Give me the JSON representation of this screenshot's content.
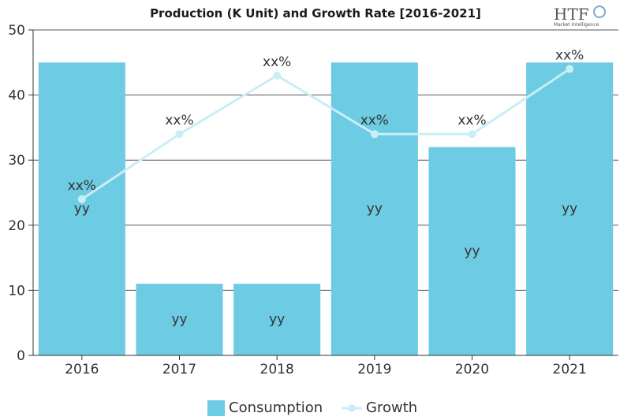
{
  "chart_data": {
    "type": "bar",
    "title": "Production (K Unit) and Growth Rate [2016-2021]",
    "categories": [
      "2016",
      "2017",
      "2018",
      "2019",
      "2020",
      "2021"
    ],
    "ylim": [
      0,
      50
    ],
    "yticks": [
      "0",
      "10",
      "20",
      "30",
      "40",
      "50"
    ],
    "grid": true,
    "legend_position": "bottom",
    "series": [
      {
        "name": "Consumption",
        "type": "bar",
        "color": "#6dcbe3",
        "values": [
          45,
          11,
          11,
          45,
          32,
          45
        ],
        "labels": [
          "yy",
          "yy",
          "yy",
          "yy",
          "yy",
          "yy"
        ]
      },
      {
        "name": "Growth",
        "type": "line",
        "color": "#c9eef6",
        "values": [
          24,
          34,
          43,
          34,
          34,
          44
        ],
        "labels": [
          "xx%",
          "xx%",
          "xx%",
          "xx%",
          "xx%",
          "xx%"
        ]
      }
    ]
  },
  "logo": {
    "text": "HTF",
    "subtext": "Market Intelligence"
  }
}
